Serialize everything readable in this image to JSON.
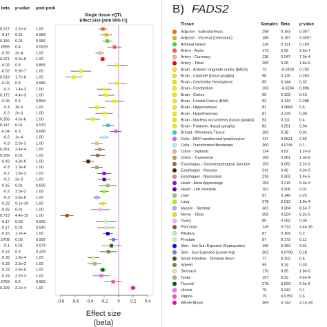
{
  "left": {
    "headers": [
      "beta",
      "p-value",
      "post-prob"
    ],
    "title": [
      "Single tissue eQTL",
      "Effect Size (with 95% CI)"
    ],
    "xlim": [
      -0.8,
      0.4
    ],
    "xticks": [
      -0.8,
      -0.6,
      -0.4,
      -0.2,
      0,
      0.2,
      0.4
    ],
    "xlabel": [
      "Effect size",
      "(beta)"
    ],
    "rows": [
      {
        "beta": -0.217,
        "err": 0.06,
        "p": "2.2e-4",
        "pp": "1.00"
      },
      {
        "beta": -0.17,
        "err": 0.08,
        "p": "0.01",
        "pp": "0.959"
      },
      {
        "beta": -0.156,
        "err": 0.07,
        "p": "0.01",
        "pp": "0.966"
      },
      {
        "beta": -0.0555,
        "err": 0.1,
        "p": "0.4",
        "pp": "0.0629"
      },
      {
        "beta": -0.26,
        "err": 0.06,
        "p": "2e-4",
        "pp": "1.00"
      },
      {
        "beta": -0.221,
        "err": 0.05,
        "p": "9.3e-6",
        "pp": "1.00"
      },
      {
        "beta": -0.02,
        "err": 0.14,
        "p": "0.8",
        "pp": "0.865"
      },
      {
        "beta": -0.52,
        "err": 0.14,
        "p": "5.9e-7",
        "pp": "1.00"
      },
      {
        "beta": -0.619,
        "err": 0.12,
        "p": "1.7e-6",
        "pp": "1.00"
      },
      {
        "beta": -0.02,
        "err": 0.13,
        "p": "0.8",
        "pp": "0.686"
      },
      {
        "beta": -0.2,
        "err": 0.1,
        "p": "1.4e-3",
        "pp": "1.00"
      },
      {
        "beta": -0.172,
        "err": 0.11,
        "p": "4.4e-3",
        "pp": "1.00"
      },
      {
        "beta": -0.06,
        "err": 0.13,
        "p": "0.3",
        "pp": "0.894"
      },
      {
        "beta": -0.3,
        "err": 0.11,
        "p": "3e-5",
        "pp": "1.00"
      },
      {
        "beta": -0.2,
        "err": 0.12,
        "p": "2e-3",
        "pp": "1.00"
      },
      {
        "beta": -0.356,
        "err": 0.1,
        "p": "4.6e-6",
        "pp": "1.00"
      },
      {
        "beta": -0.147,
        "err": 0.08,
        "p": "0.01",
        "pp": "0.979"
      },
      {
        "beta": -0.04,
        "err": 0.08,
        "p": "0.3",
        "pp": "0.686"
      },
      {
        "beta": -0.2,
        "err": 0.06,
        "p": "1e-4",
        "pp": "1.00"
      },
      {
        "beta": -0.3,
        "err": 0.08,
        "p": "2.0e-3",
        "pp": "1.00"
      },
      {
        "beta": -0.261,
        "err": 0.07,
        "p": "2.4e-4",
        "pp": "1.00"
      },
      {
        "beta": -0.289,
        "err": 0.1,
        "p": "0.01",
        "pp": "1.00"
      },
      {
        "beta": -0.42,
        "err": 0.08,
        "p": "4.3e-6",
        "pp": "1.00"
      },
      {
        "beta": -0.3,
        "err": 0.08,
        "p": "1.3e-6",
        "pp": "1.00"
      },
      {
        "beta": -0.2,
        "err": 0.1,
        "p": "1.8e-3",
        "pp": "1.00"
      },
      {
        "beta": -0.2,
        "err": 0.09,
        "p": "2e-3",
        "pp": "1.00"
      },
      {
        "beta": -0.15,
        "err": 0.12,
        "p": "0.01",
        "pp": "0.836"
      },
      {
        "beta": -0.2,
        "err": 0.06,
        "p": "3.3e-3",
        "pp": "1.00"
      },
      {
        "beta": -0.3,
        "err": 0.05,
        "p": "2.8e-6",
        "pp": "1.00"
      },
      {
        "beta": -0.22,
        "err": 0.06,
        "p": "9.1e-10",
        "pp": "1.00"
      },
      {
        "beta": -0.25,
        "err": 0.13,
        "p": "0.01",
        "pp": "1.00"
      },
      {
        "beta": -0.713,
        "err": 0.09,
        "p": "4.4e-15",
        "pp": "1.00"
      },
      {
        "beta": -0.17,
        "err": 0.14,
        "p": "0.03",
        "pp": "0.906"
      },
      {
        "beta": -0.17,
        "err": 0.12,
        "p": "0.01",
        "pp": "0.940"
      },
      {
        "beta": -0.15,
        "err": 0.07,
        "p": "1.2e-4",
        "pp": "1.00"
      },
      {
        "beta": -0.0708,
        "err": 0.06,
        "p": "0.05",
        "pp": "0.992"
      },
      {
        "beta": -0.1,
        "err": 0.14,
        "p": "0.01",
        "pp": "0.974"
      },
      {
        "beta": -0.14,
        "err": 0.12,
        "p": "0.3",
        "pp": "0.223"
      },
      {
        "beta": -0.35,
        "err": 0.08,
        "p": "1.9e-4",
        "pp": "1.00"
      },
      {
        "beta": -0.33,
        "err": 0.1,
        "p": "2.3e-3",
        "pp": "1.00"
      },
      {
        "beta": -0.22,
        "err": 0.05,
        "p": "2.5e-5",
        "pp": "1.00"
      },
      {
        "beta": -0.24,
        "err": 0.12,
        "p": "2.2e-3",
        "pp": "1.00"
      },
      {
        "beta": -0.0759,
        "err": 0.12,
        "p": "0.6",
        "pp": "0.983"
      },
      {
        "beta": 0.199,
        "err": 0.05,
        "p": "2.2e-4",
        "pp": "1.00"
      }
    ]
  },
  "right": {
    "label": "B)",
    "gene": "FADS2",
    "headers": [
      "Tissue",
      "Samples",
      "Beta",
      "p-value"
    ],
    "rows": [
      {
        "tissue": "Adipose - Subcutaneous",
        "n": 298,
        "beta": 0.153,
        "p": "0.007",
        "color": "#ff6600"
      },
      {
        "tissue": "Adipose - Visceral (Omentum)",
        "n": 185,
        "beta": 0.157,
        "p": "0.0267",
        "color": "#ffaa00"
      },
      {
        "tissue": "Adrenal Gland",
        "n": 126,
        "beta": 0.121,
        "p": "0.159",
        "color": "#33dd33"
      },
      {
        "tissue": "Artery - Aorta",
        "n": 173,
        "beta": 0.35,
        "p": "2.5e-7",
        "color": "#ff5555"
      },
      {
        "tissue": "Artery - Coronary",
        "n": 118,
        "beta": 0.247,
        "p": "7.3e-4",
        "color": "#ffaa99"
      },
      {
        "tissue": "Artery - Tibial",
        "n": 285,
        "beta": 0.28,
        "p": "1.8e-6",
        "color": "#ff0000"
      },
      {
        "tissue": "Brain - Anterior cingulate cortex (BA24)",
        "n": 72,
        "beta": -0.0428,
        "p": "0.792",
        "color": "#eeee00"
      },
      {
        "tissue": "Brain - Caudate (basal ganglia)",
        "n": 98,
        "beta": 0.126,
        "p": "0.283",
        "color": "#eeee00"
      },
      {
        "tissue": "Brain - Cerebellar Hemisphere",
        "n": 89,
        "beta": 0.144,
        "p": "0.32",
        "color": "#eeee00"
      },
      {
        "tissue": "Brain - Cerebellum",
        "n": 103,
        "beta": -0.0204,
        "p": "0.896",
        "color": "#eeee00"
      },
      {
        "tissue": "Brain - Cortex",
        "n": 96,
        "beta": 0.103,
        "p": "0.43",
        "color": "#eeee00"
      },
      {
        "tissue": "Brain - Frontal Cortex (BA9)",
        "n": 92,
        "beta": 0.143,
        "p": "0.288",
        "color": "#eeee00"
      },
      {
        "tissue": "Brain - Hippocampus",
        "n": 81,
        "beta": 0.0868,
        "p": "0.6",
        "color": "#eeee00"
      },
      {
        "tissue": "Brain - Hypothalamus",
        "n": 81,
        "beta": 0.229,
        "p": "0.09",
        "color": "#eeee00"
      },
      {
        "tissue": "Brain - Nucleus accumbens (basal ganglia)",
        "n": 93,
        "beta": 0.111,
        "p": "0.4",
        "color": "#eeee00"
      },
      {
        "tissue": "Brain - Putamen (basal ganglia)",
        "n": 82,
        "beta": 0.251,
        "p": "0.04",
        "color": "#eeee00"
      },
      {
        "tissue": "Breast - Mammary Tissue",
        "n": 183,
        "beta": 0.18,
        "p": "0.01",
        "color": "#33cccc"
      },
      {
        "tissue": "Cells - EBV-transformed lymphocytes",
        "n": 117,
        "beta": 0.0521,
        "p": "0.55",
        "color": "#cc66ff"
      },
      {
        "tissue": "Cells - Transformed fibroblasts",
        "n": 300,
        "beta": 0.0745,
        "p": "0.1",
        "color": "#aaeeff"
      },
      {
        "tissue": "Colon - Sigmoid",
        "n": 124,
        "beta": 0.52,
        "p": "1.2e-9",
        "color": "#eebb77"
      },
      {
        "tissue": "Colon - Transverse",
        "n": 169,
        "beta": 0.361,
        "p": "1.3e-5",
        "color": "#cc9955"
      },
      {
        "tissue": "Esophagus - Gastroesophageal Junction",
        "n": 153,
        "beta": 0.262,
        "p": "2.2e-3",
        "color": "#8b7355"
      },
      {
        "tissue": "Esophagus - Mucosa",
        "n": 241,
        "beta": 0.42,
        "p": "4.3e-9",
        "color": "#552200"
      },
      {
        "tissue": "Esophagus - Muscularis",
        "n": 218,
        "beta": 0.303,
        "p": "1.4e-5",
        "color": "#bb9988"
      },
      {
        "tissue": "Heart - Atrial Appendage",
        "n": 159,
        "beta": 0.215,
        "p": "5.9e-3",
        "color": "#9900ff"
      },
      {
        "tissue": "Heart - Left Ventricle",
        "n": 161,
        "beta": 0.206,
        "p": "0.01",
        "color": "#660099"
      },
      {
        "tissue": "Liver",
        "n": 97,
        "beta": 0.149,
        "p": "0.25",
        "color": "#aabb66"
      },
      {
        "tissue": "Lung",
        "n": 278,
        "beta": 0.213,
        "p": "1.9e-4",
        "color": "#99ff00"
      },
      {
        "tissue": "Muscle - Skeletal",
        "n": 361,
        "beta": 0.304,
        "p": "8.5e-7",
        "color": "#aaaaff"
      },
      {
        "tissue": "Nerve - Tibial",
        "n": 256,
        "beta": 0.224,
        "p": "6.2e-5",
        "color": "#ffd700"
      },
      {
        "tissue": "Ovary",
        "n": 85,
        "beta": 0.252,
        "p": "0.05",
        "color": "#ffaaff"
      },
      {
        "tissue": "Pancreas",
        "n": 149,
        "beta": 0.713,
        "p": "4.4e-15",
        "color": "#995522"
      },
      {
        "tissue": "Pituitary",
        "n": 87,
        "beta": 0.169,
        "p": "0.2",
        "color": "#aaff99"
      },
      {
        "tissue": "Prostate",
        "n": 87,
        "beta": 0.172,
        "p": "0.11",
        "color": "#dddddd"
      },
      {
        "tissue": "Skin - Not Sun Exposed (Suprapubic)",
        "n": 196,
        "beta": 0.153,
        "p": "0.01",
        "color": "#0000ff"
      },
      {
        "tissue": "Skin - Sun Exposed (Lower leg)",
        "n": 302,
        "beta": 0.0708,
        "p": "0.18",
        "color": "#7777ff"
      },
      {
        "tissue": "Small Intestine - Terminal Ileum",
        "n": 77,
        "beta": 0.102,
        "p": "0.5",
        "color": "#555522"
      },
      {
        "tissue": "Spleen",
        "n": 99,
        "beta": 0.14,
        "p": "0.33",
        "color": "#778855"
      },
      {
        "tissue": "Stomach",
        "n": 170,
        "beta": 0.35,
        "p": "1.8e-5",
        "color": "#ffdd99"
      },
      {
        "tissue": "Testis",
        "n": 157,
        "beta": 0.33,
        "p": "4.2e-4",
        "color": "#aaaaaa"
      },
      {
        "tissue": "Thyroid",
        "n": 278,
        "beta": 0.223,
        "p": "5.3e-6",
        "color": "#006600"
      },
      {
        "tissue": "Uterus",
        "n": 70,
        "beta": 0.242,
        "p": "0.1",
        "color": "#ff66ff"
      },
      {
        "tissue": "Vagina",
        "n": 79,
        "beta": 0.0759,
        "p": "0.6",
        "color": "#ff5599"
      },
      {
        "tissue": "Whole Blood",
        "n": 369,
        "beta": 0.743,
        "p": "3.1e-28",
        "color": "#ff00bb"
      }
    ]
  }
}
